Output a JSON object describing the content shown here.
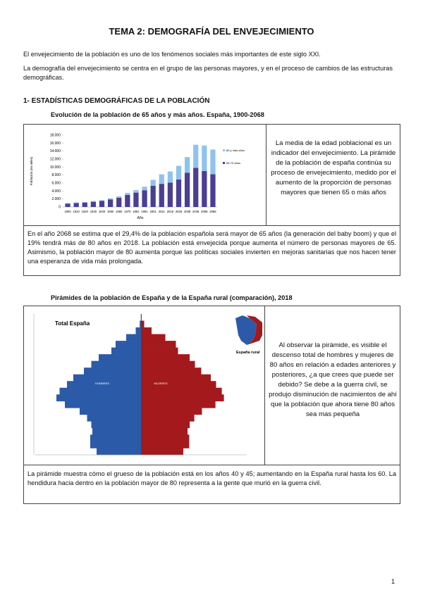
{
  "header": {
    "title": "TEMA 2: DEMOGRAFÍA DEL ENVEJECIMIENTO"
  },
  "intro": [
    "El envejecimiento de la población es uno de los fenómenos sociales más importantes de este siglo XXI.",
    "La demografía del envejecimiento se centra en el grupo de las personas mayores, y en el proceso de cambios de las estructuras demográficas."
  ],
  "section": {
    "heading": "1- ESTADÍSTICAS DEMOGRÁFICAS DE LA POBLACIÓN"
  },
  "figure1": {
    "caption": "Evolución de la población de 65 años y más años. España, 1900-2068",
    "side_text": "La media de la edad poblacional es un indicador del envejecimiento. La pirámide de la población de españa continúa su proceso de envejecimiento, medido por el aumento de la proporción de personas mayores que tienen 65 o más años",
    "note": "En el año 2068 se estima que el 29,4% de la población española será mayor de 65 años (la generación del baby boom) y que el  19% tendrá más de 80 años en 2018. La población está envejecida porque aumenta el número de personas mayores de 65. Asimismo, la población mayor de 80 aumenta porque las políticas sociales invierten en mejoras sanitarias que nos hacen tener una esperanza de vida más prolongada.",
    "chart_data": {
      "type": "bar",
      "stacked": true,
      "x_label": "Año",
      "y_label": "Población (en miles)",
      "categories": [
        "1900",
        "1910",
        "1920",
        "1930",
        "1940",
        "1950",
        "1960",
        "1970",
        "1981",
        "1991",
        "2001",
        "2011",
        "2018",
        "2028",
        "2038",
        "2048",
        "2058",
        "2068"
      ],
      "series": [
        {
          "name": "65-79 años",
          "color": "#4b3f91",
          "values": [
            850,
            1000,
            1100,
            1300,
            1500,
            1900,
            2300,
            3000,
            3600,
            4200,
            5300,
            5800,
            6100,
            6900,
            8600,
            9800,
            9000,
            8200
          ]
        },
        {
          "name": "80 y más años",
          "color": "#8fc3ee",
          "values": [
            115,
            140,
            160,
            190,
            220,
            280,
            370,
            520,
            620,
            880,
            1500,
            2400,
            2800,
            3400,
            3900,
            5800,
            6400,
            6200
          ]
        }
      ],
      "ylim": [
        0,
        18000
      ],
      "yticks": [
        0,
        {
          "value": 2000,
          "label": "2.000"
        },
        {
          "value": 4000,
          "label": "4.000"
        },
        {
          "value": 6000,
          "label": "6.000"
        },
        {
          "value": 8000,
          "label": "8.000"
        },
        {
          "value": 10000,
          "label": "10.000"
        },
        {
          "value": 12000,
          "label": "12.000"
        },
        {
          "value": 14000,
          "label": "14.000"
        },
        {
          "value": 16000,
          "label": "16.000"
        },
        {
          "value": 18000,
          "label": "18.000"
        }
      ],
      "grid": false
    }
  },
  "figure2": {
    "caption": "Pirámides de la población de España y de la España rural (comparación), 2018",
    "side_text": "Al observar la pirámide, es visible el descenso total de hombres y mujeres de 80 años en relación a edades anteriores y posteriores, ¿a que crees que puede ser debido? Se debe a la guerra civil, se produjo disminución de nacimientos de ahí que la población que ahora tiene 80 años sea mas pequeña",
    "note": "La pirámide muestra cómo el grueso de la población está en los años 40 y 45; aumentando en la España rural hasta los 60. La hendidura hacia dentro en la población mayor de 80 representa a la gente que murió en la guerra civil.",
    "chart_data": {
      "type": "pyramid",
      "title": "Total España",
      "inset_label": "España rural",
      "categories": [
        null,
        null,
        null,
        null,
        null,
        null,
        null,
        null,
        null,
        null,
        null,
        null,
        null,
        null,
        null,
        null,
        null,
        null,
        null,
        null,
        null
      ],
      "xlim": [
        0,
        500000
      ],
      "series": [
        {
          "name": "HOMBRES",
          "color": "#2b5ba8",
          "values": [
            210000,
            240000,
            240000,
            230000,
            235000,
            255000,
            290000,
            360000,
            400000,
            385000,
            350000,
            320000,
            270000,
            235000,
            200000,
            140000,
            120000,
            70000,
            25000,
            6000,
            1000
          ]
        },
        {
          "name": "MUJERES",
          "color": "#a3191c",
          "values": [
            200000,
            228000,
            228000,
            220000,
            230000,
            252000,
            288000,
            352000,
            392000,
            382000,
            355000,
            330000,
            285000,
            255000,
            230000,
            175000,
            165000,
            115000,
            50000,
            15000,
            3000
          ]
        }
      ]
    }
  },
  "page_number": "1"
}
